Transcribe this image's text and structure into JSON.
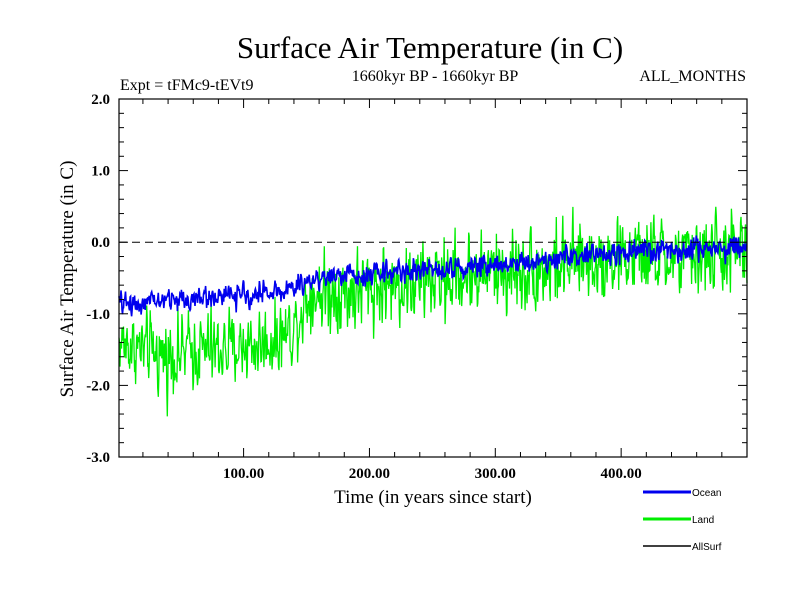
{
  "chart_data": {
    "type": "line",
    "title": "Surface Air Temperature (in C)",
    "subtitle_left": "Expt = tFMc9-tEVt9",
    "subtitle_center": "1660kyr BP - 1660kyr BP",
    "subtitle_right": "ALL_MONTHS",
    "xlabel": "Time (in years since start)",
    "ylabel": "Surface Air Temperature (in C)",
    "xlim": [
      1,
      500
    ],
    "ylim": [
      -3.0,
      2.0
    ],
    "xticks": [
      100,
      200,
      300,
      400
    ],
    "xtick_labels": [
      "100.00",
      "200.00",
      "300.00",
      "400.00"
    ],
    "yticks": [
      2.0,
      1.0,
      0.0,
      -1.0,
      -2.0,
      -3.0
    ],
    "ytick_labels": [
      "2.0",
      "1.0",
      "0.0",
      "-1.0",
      "-2.0",
      "-3.0"
    ],
    "reference_line": 0.0,
    "series": [
      {
        "name": "Land",
        "color": "#00ee00",
        "x": [
          1,
          20,
          40,
          60,
          80,
          100,
          120,
          140,
          150,
          160,
          180,
          200,
          220,
          240,
          260,
          280,
          300,
          320,
          340,
          360,
          380,
          400,
          420,
          440,
          460,
          480,
          500
        ],
        "values": [
          -1.4,
          -1.5,
          -1.6,
          -1.5,
          -1.5,
          -1.45,
          -1.4,
          -1.2,
          -0.75,
          -0.7,
          -0.7,
          -0.65,
          -0.6,
          -0.55,
          -0.5,
          -0.45,
          -0.4,
          -0.4,
          -0.35,
          -0.3,
          -0.25,
          -0.2,
          -0.2,
          -0.25,
          -0.2,
          -0.15,
          -0.1
        ],
        "spread": [
          0.65,
          0.7,
          0.75,
          0.75,
          0.75,
          0.7,
          0.7,
          0.7,
          0.8,
          0.8,
          0.8,
          0.8,
          0.8,
          0.8,
          0.8,
          0.8,
          0.8,
          0.8,
          0.8,
          0.8,
          0.8,
          0.8,
          0.8,
          0.8,
          0.8,
          0.8,
          0.8
        ]
      },
      {
        "name": "Ocean",
        "color": "#0000ee",
        "x": [
          1,
          20,
          40,
          60,
          80,
          100,
          120,
          140,
          150,
          160,
          180,
          200,
          220,
          240,
          260,
          280,
          300,
          320,
          340,
          360,
          380,
          400,
          420,
          440,
          460,
          480,
          500
        ],
        "values": [
          -0.85,
          -0.85,
          -0.8,
          -0.8,
          -0.75,
          -0.75,
          -0.7,
          -0.65,
          -0.55,
          -0.5,
          -0.45,
          -0.45,
          -0.4,
          -0.4,
          -0.35,
          -0.35,
          -0.3,
          -0.28,
          -0.25,
          -0.2,
          -0.18,
          -0.15,
          -0.12,
          -0.12,
          -0.1,
          -0.08,
          -0.05
        ],
        "spread": [
          0.22,
          0.22,
          0.22,
          0.22,
          0.22,
          0.22,
          0.22,
          0.22,
          0.22,
          0.22,
          0.22,
          0.22,
          0.22,
          0.22,
          0.22,
          0.22,
          0.22,
          0.22,
          0.22,
          0.22,
          0.22,
          0.22,
          0.22,
          0.22,
          0.22,
          0.22,
          0.22
        ]
      },
      {
        "name": "AllSurf",
        "color": "#000000",
        "x": [],
        "values": [],
        "spread": []
      }
    ],
    "legend": {
      "placement": "bottom-right",
      "entries": [
        "Ocean",
        "Land",
        "AllSurf"
      ]
    }
  }
}
